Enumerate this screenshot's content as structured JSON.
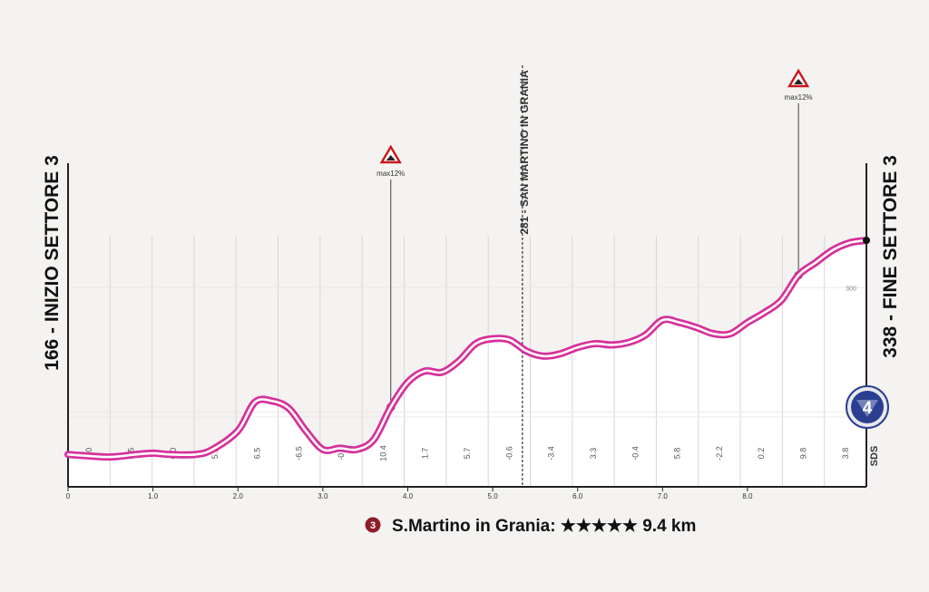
{
  "chart_data": {
    "type": "area",
    "start_label": "166 - INIZIO SETTORE 3",
    "end_label": "338 - FINE SETTORE 3",
    "summit_label": "281 - SAN MARTINO IN GRANIA",
    "x_ticks": [
      "0",
      "1.0",
      "2.0",
      "3.0",
      "4.0",
      "5.0",
      "6.0",
      "7.0",
      "8.0"
    ],
    "x_range": [
      0,
      9.4
    ],
    "y_ticks": [
      "300",
      "200"
    ],
    "y_range": [
      140,
      400
    ],
    "gradients": [
      "0.0",
      "0.5",
      "0.0",
      "5.5",
      "6.5",
      "-6.5",
      "-0.7",
      "10.4",
      "1.7",
      "5.7",
      "-0.6",
      "-3.4",
      "3.3",
      "-0.4",
      "5.8",
      "-2.2",
      "0.2",
      "9.8",
      "3.8"
    ],
    "profile": {
      "x": [
        0,
        0.2,
        0.5,
        0.8,
        1.0,
        1.2,
        1.5,
        1.7,
        2.0,
        2.2,
        2.4,
        2.6,
        2.8,
        3.0,
        3.2,
        3.4,
        3.6,
        3.8,
        4.0,
        4.2,
        4.4,
        4.6,
        4.8,
        5.0,
        5.2,
        5.4,
        5.6,
        5.8,
        6.0,
        6.2,
        6.4,
        6.6,
        6.8,
        7.0,
        7.2,
        7.4,
        7.6,
        7.8,
        8.0,
        8.2,
        8.4,
        8.6,
        8.8,
        9.0,
        9.2,
        9.4
      ],
      "y": [
        166,
        165,
        164,
        166,
        167,
        166,
        166,
        170,
        185,
        208,
        209,
        203,
        185,
        170,
        171,
        170,
        178,
        204,
        224,
        233,
        232,
        241,
        255,
        259,
        258,
        249,
        245,
        247,
        252,
        255,
        254,
        256,
        262,
        274,
        272,
        268,
        263,
        263,
        272,
        280,
        290,
        310,
        320,
        330,
        336,
        338
      ]
    },
    "climbs": [
      {
        "label": "max12%",
        "x": 3.8
      },
      {
        "label": "max12%",
        "x": 8.6
      }
    ],
    "summit_x": 5.35,
    "km_marker": "4",
    "sigla": "SDS"
  },
  "footer": {
    "badge": "3",
    "text": "S.Martino in Grania: ★★★★★ 9.4 km"
  },
  "colors": {
    "profile_line": "#d6309c",
    "area_fill": "#ffffff",
    "background": "#f4f3f1",
    "badge": "#8e1d2b",
    "marker_fill": "#2b3f92",
    "warning_fill": "#c8171b"
  }
}
